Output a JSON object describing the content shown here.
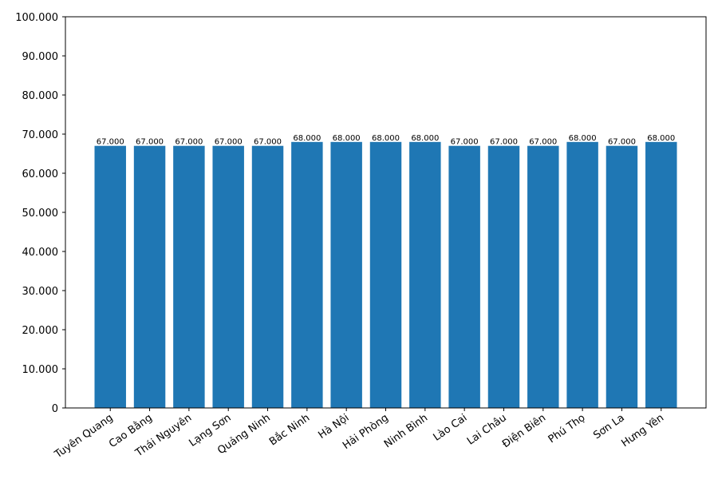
{
  "chart_data": {
    "type": "bar",
    "categories": [
      "Tuyên Quang",
      "Cao Bằng",
      "Thái Nguyên",
      "Lạng Sơn",
      "Quảng Ninh",
      "Bắc Ninh",
      "Hà Nội",
      "Hải Phòng",
      "Ninh Bình",
      "Lào Cai",
      "Lai Châu",
      "Điện Biên",
      "Phú Thọ",
      "Sơn La",
      "Hưng Yên"
    ],
    "values": [
      67000,
      67000,
      67000,
      67000,
      67000,
      68000,
      68000,
      68000,
      68000,
      67000,
      67000,
      67000,
      68000,
      67000,
      68000
    ],
    "value_labels": [
      "67.000",
      "67.000",
      "67.000",
      "67.000",
      "67.000",
      "68.000",
      "68.000",
      "68.000",
      "68.000",
      "67.000",
      "67.000",
      "67.000",
      "68.000",
      "67.000",
      "68.000"
    ],
    "color": "#1f77b4",
    "ylim": [
      0,
      100000
    ],
    "yticks": [
      0,
      {
        "value": 10000,
        "label": "10.000"
      },
      {
        "value": 20000,
        "label": "20.000"
      },
      {
        "value": 30000,
        "label": "30.000"
      },
      {
        "value": 40000,
        "label": "40.000"
      },
      {
        "value": 50000,
        "label": "50.000"
      },
      {
        "value": 60000,
        "label": "60.000"
      },
      {
        "value": 70000,
        "label": "70.000"
      },
      {
        "value": 80000,
        "label": "80.000"
      },
      {
        "value": 90000,
        "label": "90.000"
      },
      {
        "value": 100000,
        "label": "100.000"
      }
    ],
    "grid": false
  }
}
